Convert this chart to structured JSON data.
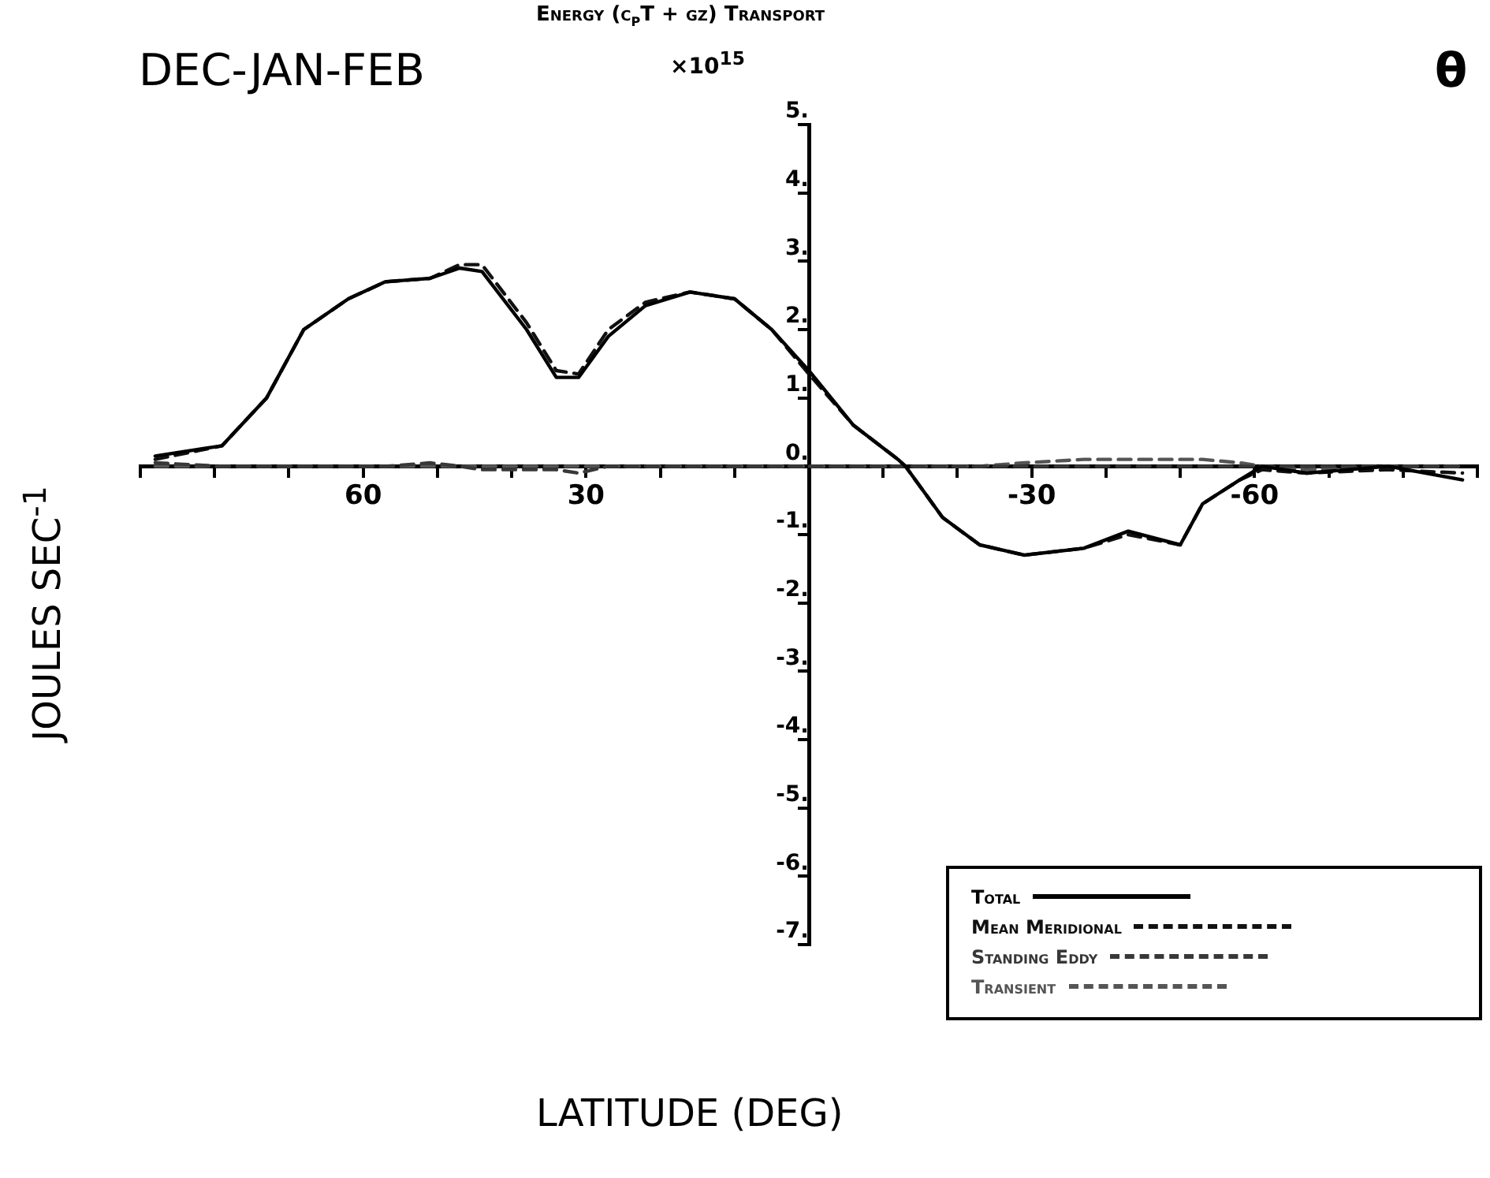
{
  "chart_data": {
    "type": "line",
    "title": "Energy (c$_{p}$T + gz) Transport",
    "subtitle": "DEC-JAN-FEB",
    "xlabel": "LATITUDE (DEG)",
    "ylabel": "JOULES SEC$^{-1}$",
    "annotations": [
      "×10$^{15}$",
      "θ"
    ],
    "x": [
      88,
      79,
      73,
      68,
      62,
      57,
      51,
      47,
      44,
      38,
      34,
      31,
      27,
      22,
      16,
      10,
      5,
      0,
      -6,
      -12,
      -13,
      -18,
      -23,
      -29,
      -37,
      -43,
      -50,
      -53,
      -58,
      -61,
      -67,
      -78,
      -88
    ],
    "series": [
      {
        "name": "Total",
        "color": "#000000",
        "line_style": "solid",
        "values": [
          0.15,
          0.3,
          1.0,
          2.0,
          2.45,
          2.7,
          2.75,
          2.9,
          2.85,
          2.0,
          1.3,
          1.3,
          1.9,
          2.35,
          2.55,
          2.45,
          2.0,
          1.4,
          0.6,
          0.1,
          0,
          -0.75,
          -1.15,
          -1.3,
          -1.2,
          -0.95,
          -1.15,
          -0.55,
          -0.2,
          0,
          -0.1,
          0,
          -0.2
        ]
      },
      {
        "name": "Mean Meridional",
        "color": "#111111",
        "line_style": "dashed",
        "values": [
          0.1,
          0.3,
          1.0,
          2.0,
          2.45,
          2.7,
          2.75,
          2.95,
          2.95,
          2.1,
          1.4,
          1.35,
          2.0,
          2.4,
          2.55,
          2.45,
          2.0,
          1.35,
          0.6,
          0.1,
          0,
          -0.75,
          -1.15,
          -1.3,
          -1.2,
          -1.0,
          -1.15,
          -0.55,
          -0.2,
          -0.05,
          -0.1,
          -0.05,
          -0.1
        ]
      },
      {
        "name": "Standing Eddy",
        "color": "#383838",
        "line_style": "dashed",
        "values": [
          0.05,
          0,
          0,
          0,
          0,
          0,
          0.05,
          0,
          -0.05,
          -0.05,
          -0.05,
          -0.1,
          0,
          0,
          0,
          0,
          0,
          0,
          0,
          0,
          0,
          0,
          0,
          0,
          0,
          0,
          0,
          0,
          0,
          0,
          0,
          0,
          0
        ]
      },
      {
        "name": "Transient",
        "color": "#555555",
        "line_style": "dashed",
        "values": [
          0,
          0,
          0,
          0,
          0,
          0,
          0,
          0,
          0,
          0,
          0,
          0,
          0,
          0,
          0,
          0,
          0,
          0,
          0,
          0,
          0,
          0,
          0,
          0.05,
          0.1,
          0.1,
          0.1,
          0.1,
          0.05,
          0,
          -0.05,
          0,
          0
        ]
      }
    ],
    "xlim": [
      90,
      -90
    ],
    "xticks": [
      {
        "value": 90,
        "label": null
      },
      {
        "value": 80,
        "label": null
      },
      {
        "value": 70,
        "label": null
      },
      60,
      {
        "value": 50,
        "label": null
      },
      {
        "value": 40,
        "label": null
      },
      30,
      {
        "value": 20,
        "label": null
      },
      {
        "value": 10,
        "label": null
      },
      {
        "value": 0,
        "label": null
      },
      {
        "value": -10,
        "label": null
      },
      {
        "value": -20,
        "label": null
      },
      -30,
      {
        "value": -40,
        "label": null
      },
      {
        "value": -50,
        "label": null
      },
      -60,
      {
        "value": -70,
        "label": null
      },
      {
        "value": -80,
        "label": null
      },
      {
        "value": -90,
        "label": null
      }
    ],
    "ylim": [
      -7,
      5
    ],
    "yticks": [
      {
        "value": -7,
        "label": "-7."
      },
      {
        "value": -6,
        "label": "-6."
      },
      {
        "value": -5,
        "label": "-5."
      },
      {
        "value": -4,
        "label": "-4."
      },
      {
        "value": -3,
        "label": "-3."
      },
      {
        "value": -2,
        "label": "-2."
      },
      {
        "value": -1,
        "label": "-1."
      },
      {
        "value": 0,
        "label": "0."
      },
      {
        "value": 1,
        "label": "1."
      },
      {
        "value": 2,
        "label": "2."
      },
      {
        "value": 3,
        "label": "3."
      },
      {
        "value": 4,
        "label": "4."
      },
      {
        "value": 5,
        "label": "5."
      }
    ],
    "grid": false,
    "legend": "bottom right",
    "marker": "none"
  }
}
